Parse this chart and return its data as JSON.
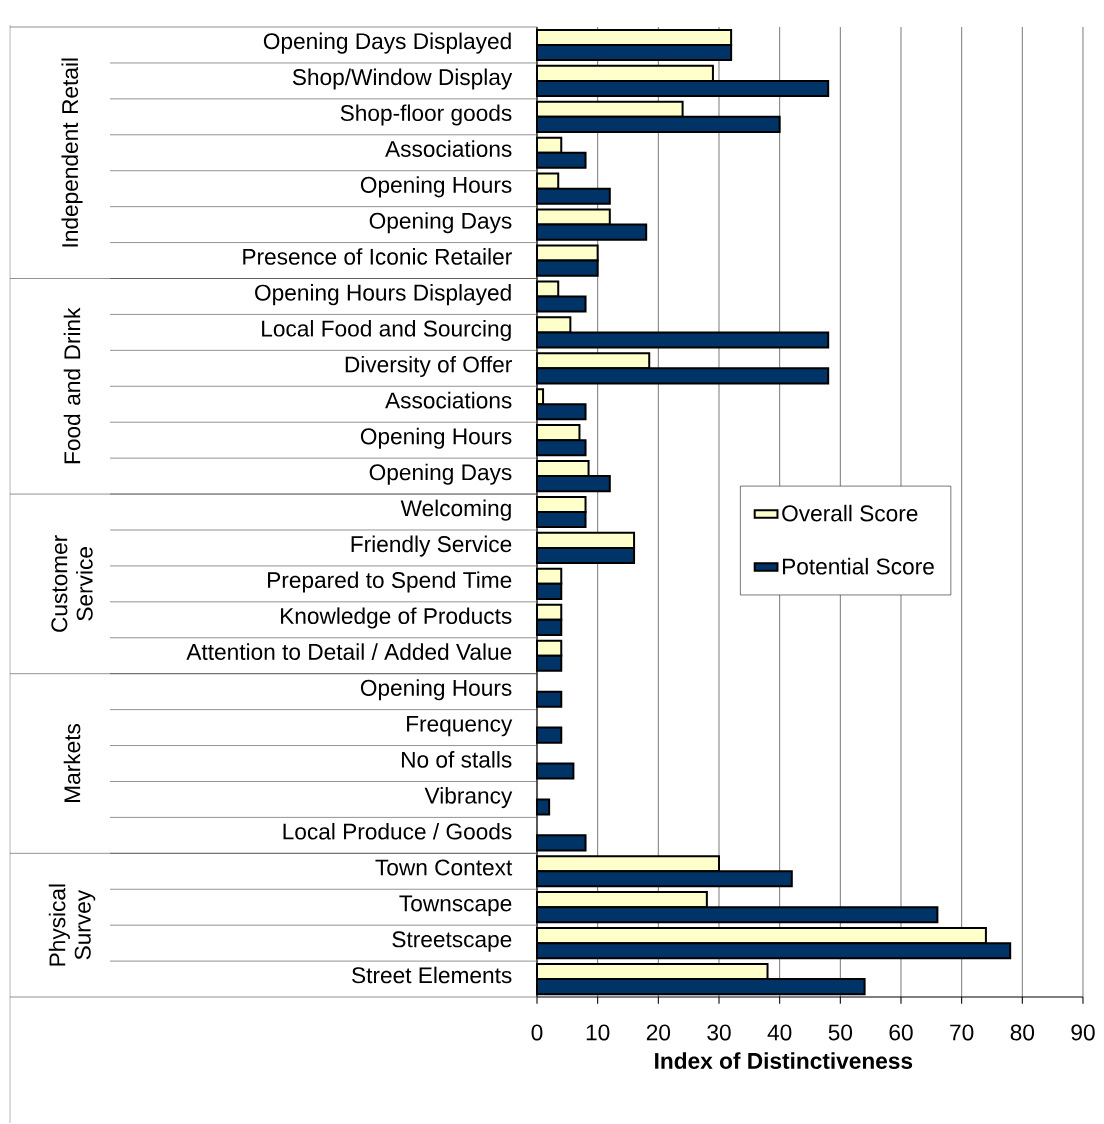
{
  "chart_data": {
    "type": "bar",
    "orientation": "horizontal",
    "categories": [
      "Opening Days Displayed",
      "Shop/Window Display",
      "Shop-floor goods",
      "Associations",
      "Opening Hours",
      "Opening Days",
      "Presence of Iconic Retailer",
      "Opening Hours Displayed",
      "Local Food and Sourcing",
      "Diversity of Offer",
      "Associations",
      "Opening Hours",
      "Opening Days",
      "Welcoming",
      "Friendly Service",
      "Prepared to Spend Time",
      "Knowledge of Products",
      "Attention to Detail / Added Value",
      "Opening Hours",
      "Frequency",
      "No of stalls",
      "Vibrancy",
      "Local Produce / Goods",
      "Town Context",
      "Townscape",
      "Streetscape",
      "Street Elements"
    ],
    "series": [
      {
        "name": "Overall Score",
        "color": "#ffffcc",
        "values": [
          32,
          29,
          24,
          4,
          3.5,
          12,
          10,
          3.5,
          5.5,
          18.5,
          1,
          7,
          8.5,
          8,
          16,
          4,
          4,
          4,
          null,
          null,
          null,
          null,
          null,
          30,
          28,
          74,
          38
        ]
      },
      {
        "name": "Potential Score",
        "color": "#003366",
        "values": [
          32,
          48,
          40,
          8,
          12,
          18,
          10,
          8,
          48,
          48,
          8,
          8,
          12,
          8,
          16,
          4,
          4,
          4,
          4,
          4,
          6,
          2,
          8,
          42,
          66,
          78,
          54
        ]
      }
    ],
    "xlabel": "Index of Distinctiveness",
    "xlim": [
      0,
      90
    ],
    "xticks": [
      0,
      10,
      20,
      30,
      40,
      50,
      60,
      70,
      80,
      90
    ],
    "grid": "x",
    "legend": "right",
    "annotations": [
      "Independent Retail",
      "Food and Drink",
      "Customer Service",
      "Markets",
      "Physical Survey"
    ]
  }
}
